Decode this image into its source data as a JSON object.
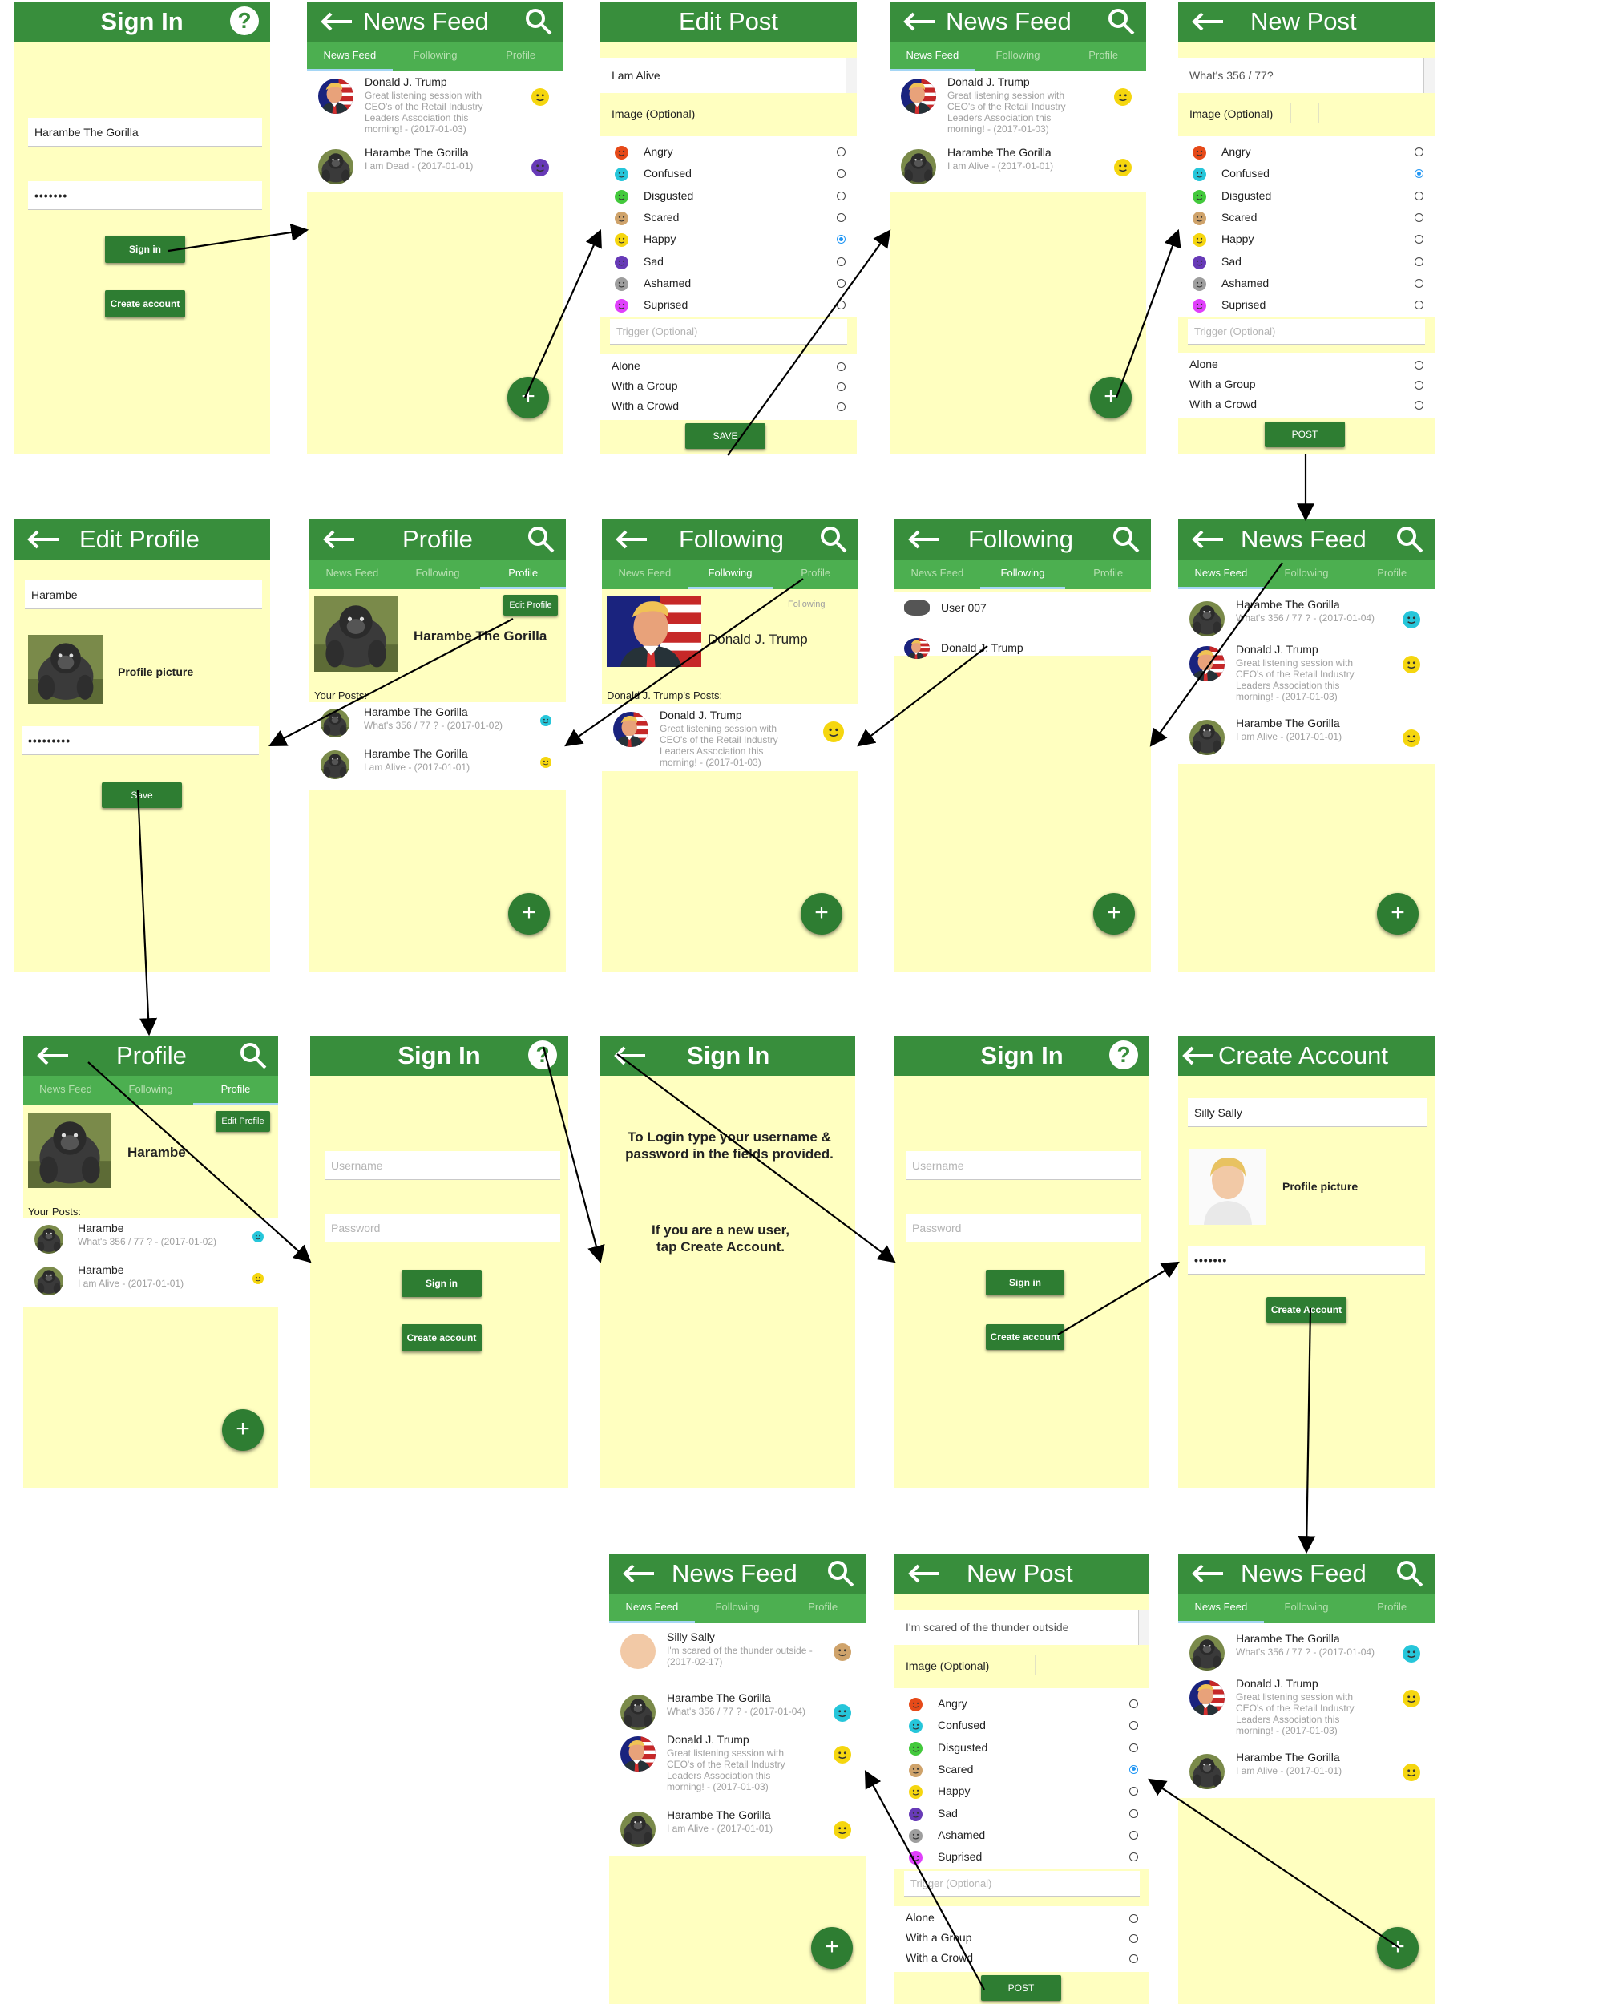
{
  "icons": [
    "arrow-left-icon",
    "search-icon",
    "help-icon",
    "plus-icon",
    "emoji-face-icon",
    "image-placeholder-icon",
    "radio-icon"
  ],
  "colors": {
    "app_bar": "#388e3c",
    "tab_bar": "#4caf50",
    "screen_bg": "#ffffc0",
    "button": "#2e7d32",
    "arrow": "#000000"
  },
  "moods": {
    "names": [
      "Angry",
      "Confused",
      "Disgusted",
      "Scared",
      "Happy",
      "Sad",
      "Ashamed",
      "Suprised"
    ],
    "colors": [
      "#e64a19",
      "#26c6da",
      "#43c93c",
      "#cfa36b",
      "#f5d60f",
      "#673ab7",
      "#9e9e9e",
      "#e040fb"
    ]
  },
  "social": [
    "Alone",
    "With a Group",
    "With a Crowd"
  ],
  "common": {
    "tab_feed": "News Feed",
    "tab_following": "Following",
    "tab_profile": "Profile",
    "image_optional": "Image (Optional)",
    "trigger_placeholder": "Trigger (Optional)",
    "sign_in": "Sign in",
    "create_account": "Create account",
    "create_account_title": "Create Account",
    "edit_profile": "Edit Profile",
    "profile_picture": "Profile picture",
    "your_posts": "Your Posts:",
    "save": "Save",
    "save_caps": "SAVE",
    "post": "POST",
    "help_q": "?",
    "plus": "+",
    "username_ph": "Username",
    "password_ph": "Password",
    "following_lbl": "Following"
  },
  "posts": {
    "trump_name": "Donald J. Trump",
    "trump_text": "Great listening session with CEO's of the Retail Industry Leaders Association this morning! - (2017-01-03)",
    "gorilla_name": "Harambe The Gorilla",
    "short_name": "Harambe",
    "dead": "I am Dead - (2017-01-01)",
    "alive": "I am Alive - (2017-01-01)",
    "q": "What's 356 / 77 ? - (2017-01-04)",
    "q2": "What's 356 / 77 ? - (2017-01-02)",
    "sally_name": "Silly Sally",
    "sally_text": "I'm scared of the thunder outside - (2017-02-17)"
  },
  "screens": {
    "s1": {
      "title": "Sign In",
      "user": "Harambe The Gorilla",
      "pass": "•••••••"
    },
    "s2": {
      "title": "News Feed"
    },
    "s3": {
      "title": "Edit Post",
      "field": "I am Alive"
    },
    "s4": {
      "title": "News Feed"
    },
    "s5": {
      "title": "New Post",
      "field": "What's 356 / 77?"
    },
    "s6": {
      "title": "Edit Profile",
      "user": "Harambe",
      "pass": "•••••••••"
    },
    "s7": {
      "title": "Profile"
    },
    "s8": {
      "title": "Following",
      "posts_hdr": "Donald J. Trump's Posts:"
    },
    "s9": {
      "title": "Following",
      "user007": "User 007"
    },
    "s10": {
      "title": "News Feed"
    },
    "s11": {
      "title": "Profile"
    },
    "s12": {
      "title": "Sign In"
    },
    "s13": {
      "title": "Sign In",
      "help1": "To Login type your username & password in the fields provided.",
      "help2": "If you are a new user, tap Create Account."
    },
    "s14": {
      "title": "Sign In"
    },
    "s15": {
      "title": "Create Account",
      "user": "Silly Sally",
      "pass": "•••••••"
    },
    "s16": {
      "title": "News Feed"
    },
    "s17": {
      "title": "New Post",
      "field": "I'm scared of the thunder outside"
    },
    "s18": {
      "title": "News Feed"
    }
  }
}
